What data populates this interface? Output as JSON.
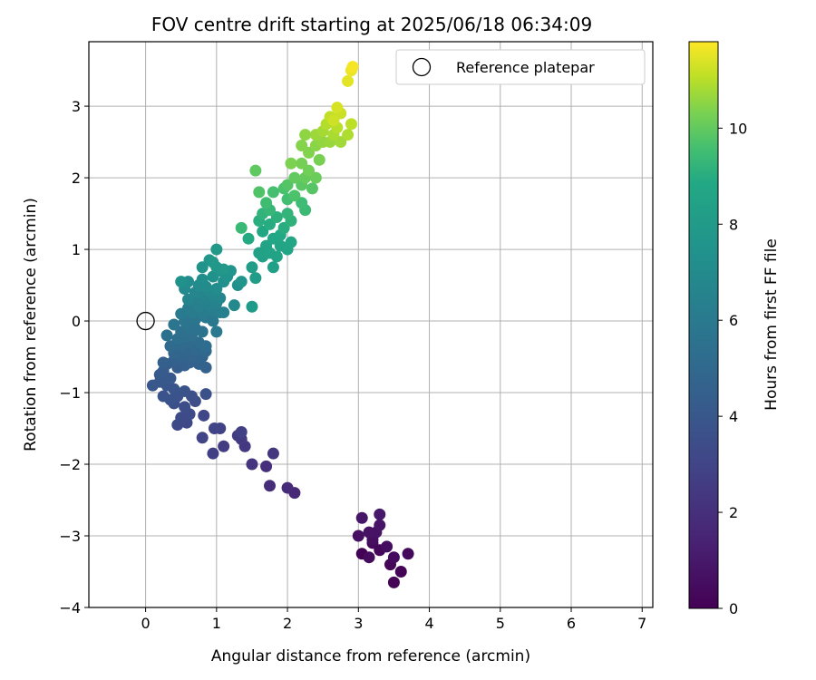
{
  "chart_data": {
    "type": "scatter",
    "title": "FOV centre drift starting at 2025/06/18 06:34:09",
    "xlabel": "Angular distance from reference (arcmin)",
    "ylabel": "Rotation from reference (arcmin)",
    "xlim": [
      -0.8,
      7.15
    ],
    "ylim": [
      -4.0,
      3.9
    ],
    "xticks": [
      "0",
      "1",
      "2",
      "3",
      "4",
      "5",
      "6",
      "7"
    ],
    "yticks": [
      "−4",
      "−3",
      "−2",
      "−1",
      "0",
      "1",
      "2",
      "3"
    ],
    "grid": true,
    "legend": {
      "position": "top-right",
      "entries": [
        "Reference platepar"
      ]
    },
    "reference_point": {
      "x": 0,
      "y": 0
    },
    "colorbar": {
      "label": "Hours from first FF file",
      "range": [
        0,
        11.8
      ],
      "ticks": [
        "0",
        "2",
        "4",
        "6",
        "8",
        "10"
      ],
      "colormap": "viridis"
    },
    "series": [
      {
        "points": [
          [
            3.05,
            -3.25,
            0.05
          ],
          [
            3.6,
            -3.5,
            0.1
          ],
          [
            3.5,
            -3.65,
            0.15
          ],
          [
            3.45,
            -3.4,
            0.2
          ],
          [
            3.3,
            -3.2,
            0.25
          ],
          [
            3.2,
            -3.1,
            0.3
          ],
          [
            3.7,
            -3.25,
            0.35
          ],
          [
            3.5,
            -3.3,
            0.4
          ],
          [
            3.15,
            -3.3,
            0.45
          ],
          [
            3.4,
            -3.15,
            0.5
          ],
          [
            3.2,
            -3.05,
            0.55
          ],
          [
            3.0,
            -3.0,
            0.6
          ],
          [
            3.25,
            -2.95,
            0.7
          ],
          [
            3.15,
            -2.95,
            0.75
          ],
          [
            3.3,
            -2.85,
            0.85
          ],
          [
            3.05,
            -2.75,
            0.9
          ],
          [
            3.3,
            -2.7,
            1.0
          ],
          [
            2.1,
            -2.4,
            1.7
          ],
          [
            2.0,
            -2.33,
            1.8
          ],
          [
            1.75,
            -2.3,
            1.9
          ],
          [
            1.7,
            -2.03,
            2.0
          ],
          [
            1.5,
            -2.0,
            2.2
          ],
          [
            1.8,
            -1.85,
            2.3
          ],
          [
            1.4,
            -1.75,
            2.4
          ],
          [
            1.35,
            -1.65,
            2.5
          ],
          [
            1.3,
            -1.6,
            2.55
          ],
          [
            1.1,
            -1.75,
            2.6
          ],
          [
            0.95,
            -1.85,
            2.7
          ],
          [
            1.35,
            -1.55,
            2.75
          ],
          [
            1.05,
            -1.5,
            2.85
          ],
          [
            0.97,
            -1.5,
            2.95
          ],
          [
            0.8,
            -1.63,
            3.0
          ],
          [
            0.82,
            -1.32,
            3.1
          ],
          [
            0.58,
            -1.42,
            3.2
          ],
          [
            0.45,
            -1.45,
            3.3
          ],
          [
            0.62,
            -1.3,
            3.35
          ],
          [
            0.5,
            -1.35,
            3.4
          ],
          [
            0.55,
            -1.2,
            3.45
          ],
          [
            0.7,
            -1.12,
            3.5
          ],
          [
            0.4,
            -1.15,
            3.55
          ],
          [
            0.65,
            -1.05,
            3.6
          ],
          [
            0.85,
            -1.02,
            3.65
          ],
          [
            0.45,
            -1.05,
            3.7
          ],
          [
            0.35,
            -1.1,
            3.75
          ],
          [
            0.55,
            -0.98,
            3.8
          ],
          [
            0.25,
            -1.05,
            3.85
          ],
          [
            0.4,
            -0.95,
            3.9
          ],
          [
            0.3,
            -0.9,
            3.95
          ],
          [
            0.1,
            -0.9,
            4.0
          ],
          [
            0.2,
            -0.85,
            4.05
          ],
          [
            0.35,
            -0.8,
            4.1
          ],
          [
            0.2,
            -0.75,
            4.15
          ],
          [
            0.25,
            -0.7,
            4.2
          ],
          [
            0.3,
            -0.6,
            4.3
          ],
          [
            0.45,
            -0.65,
            4.35
          ],
          [
            0.25,
            -0.58,
            4.4
          ],
          [
            0.55,
            -0.62,
            4.45
          ],
          [
            0.4,
            -0.55,
            4.5
          ],
          [
            0.62,
            -0.58,
            4.55
          ],
          [
            0.85,
            -0.65,
            4.6
          ],
          [
            0.75,
            -0.6,
            4.65
          ],
          [
            0.5,
            -0.5,
            4.7
          ],
          [
            0.65,
            -0.5,
            4.75
          ],
          [
            0.8,
            -0.5,
            4.8
          ],
          [
            0.4,
            -0.45,
            4.85
          ],
          [
            0.55,
            -0.42,
            4.9
          ],
          [
            0.7,
            -0.4,
            4.95
          ],
          [
            0.85,
            -0.42,
            5.0
          ],
          [
            0.35,
            -0.35,
            5.05
          ],
          [
            0.5,
            -0.33,
            5.1
          ],
          [
            0.6,
            -0.3,
            5.15
          ],
          [
            0.75,
            -0.3,
            5.2
          ],
          [
            0.85,
            -0.35,
            5.25
          ],
          [
            0.45,
            -0.25,
            5.3
          ],
          [
            0.55,
            -0.22,
            5.35
          ],
          [
            0.65,
            -0.2,
            5.4
          ],
          [
            0.3,
            -0.2,
            5.45
          ],
          [
            0.5,
            -0.15,
            5.5
          ],
          [
            0.7,
            -0.1,
            5.55
          ],
          [
            0.8,
            -0.15,
            5.6
          ],
          [
            0.6,
            -0.08,
            5.65
          ],
          [
            0.4,
            -0.05,
            5.7
          ],
          [
            0.55,
            0.0,
            5.75
          ],
          [
            0.7,
            0.02,
            5.8
          ],
          [
            0.85,
            0.05,
            5.85
          ],
          [
            0.95,
            0.0,
            5.9
          ],
          [
            1.0,
            -0.15,
            5.95
          ],
          [
            0.5,
            0.1,
            6.0
          ],
          [
            0.65,
            0.12,
            6.05
          ],
          [
            0.8,
            0.1,
            6.1
          ],
          [
            0.6,
            0.18,
            6.15
          ],
          [
            0.95,
            0.15,
            6.2
          ],
          [
            1.05,
            0.12,
            6.25
          ],
          [
            0.75,
            0.2,
            6.3
          ],
          [
            0.9,
            0.22,
            6.35
          ],
          [
            1.1,
            0.12,
            6.4
          ],
          [
            0.7,
            0.28,
            6.45
          ],
          [
            0.85,
            0.3,
            6.5
          ],
          [
            1.0,
            0.25,
            6.55
          ],
          [
            0.6,
            0.3,
            6.6
          ],
          [
            0.8,
            0.38,
            6.65
          ],
          [
            0.95,
            0.35,
            6.7
          ],
          [
            1.05,
            0.32,
            6.75
          ],
          [
            0.7,
            0.4,
            6.8
          ],
          [
            0.9,
            0.42,
            6.85
          ],
          [
            1.25,
            0.22,
            6.9
          ],
          [
            0.55,
            0.45,
            6.95
          ],
          [
            0.75,
            0.5,
            7.0
          ],
          [
            0.85,
            0.48,
            7.05
          ],
          [
            1.0,
            0.45,
            7.1
          ],
          [
            0.6,
            0.55,
            7.15
          ],
          [
            0.8,
            0.58,
            7.2
          ],
          [
            1.1,
            0.55,
            7.25
          ],
          [
            1.3,
            0.5,
            7.3
          ],
          [
            0.5,
            0.55,
            7.35
          ],
          [
            0.95,
            0.62,
            7.4
          ],
          [
            1.15,
            0.62,
            7.45
          ],
          [
            0.8,
            0.75,
            7.5
          ],
          [
            1.05,
            0.7,
            7.55
          ],
          [
            1.2,
            0.7,
            7.6
          ],
          [
            1.35,
            0.55,
            7.65
          ],
          [
            0.9,
            0.85,
            7.7
          ],
          [
            1.0,
            0.75,
            7.75
          ],
          [
            1.1,
            0.72,
            7.8
          ],
          [
            0.95,
            0.82,
            7.85
          ],
          [
            1.0,
            1.0,
            7.9
          ],
          [
            1.5,
            0.2,
            8.0
          ],
          [
            1.55,
            0.6,
            8.1
          ],
          [
            1.5,
            0.75,
            8.2
          ],
          [
            1.65,
            0.9,
            8.3
          ],
          [
            1.8,
            0.75,
            8.35
          ],
          [
            1.6,
            0.95,
            8.4
          ],
          [
            1.75,
            0.95,
            8.45
          ],
          [
            1.85,
            0.9,
            8.5
          ],
          [
            1.7,
            1.05,
            8.55
          ],
          [
            1.9,
            1.05,
            8.6
          ],
          [
            2.0,
            1.0,
            8.65
          ],
          [
            2.05,
            1.1,
            8.7
          ],
          [
            1.8,
            1.15,
            8.75
          ],
          [
            1.65,
            1.25,
            8.8
          ],
          [
            1.9,
            1.2,
            8.85
          ],
          [
            1.45,
            1.15,
            8.9
          ],
          [
            1.75,
            1.35,
            8.95
          ],
          [
            1.95,
            1.3,
            9.0
          ],
          [
            1.6,
            1.4,
            9.05
          ],
          [
            1.85,
            1.45,
            9.1
          ],
          [
            2.05,
            1.4,
            9.15
          ],
          [
            1.65,
            1.5,
            9.2
          ],
          [
            2.0,
            1.5,
            9.25
          ],
          [
            1.75,
            1.55,
            9.3
          ],
          [
            1.35,
            1.3,
            9.35
          ],
          [
            2.25,
            1.55,
            9.4
          ],
          [
            2.2,
            1.65,
            9.45
          ],
          [
            1.7,
            1.65,
            9.5
          ],
          [
            2.0,
            1.7,
            9.55
          ],
          [
            1.8,
            1.8,
            9.6
          ],
          [
            1.95,
            1.85,
            9.65
          ],
          [
            2.1,
            1.75,
            9.7
          ],
          [
            1.6,
            1.8,
            9.75
          ],
          [
            2.0,
            1.9,
            9.8
          ],
          [
            2.35,
            1.85,
            9.85
          ],
          [
            2.2,
            1.9,
            9.9
          ],
          [
            1.55,
            2.1,
            9.95
          ],
          [
            2.1,
            2.0,
            10.0
          ],
          [
            2.25,
            2.0,
            10.05
          ],
          [
            2.4,
            2.0,
            10.1
          ],
          [
            2.3,
            2.1,
            10.2
          ],
          [
            2.2,
            2.2,
            10.25
          ],
          [
            2.45,
            2.25,
            10.3
          ],
          [
            2.05,
            2.2,
            10.35
          ],
          [
            2.3,
            2.35,
            10.4
          ],
          [
            2.2,
            2.45,
            10.45
          ],
          [
            2.4,
            2.45,
            10.5
          ],
          [
            2.25,
            2.6,
            10.55
          ],
          [
            2.5,
            2.5,
            10.6
          ],
          [
            2.6,
            2.5,
            10.65
          ],
          [
            2.4,
            2.6,
            10.7
          ],
          [
            2.75,
            2.5,
            10.75
          ],
          [
            2.5,
            2.65,
            10.8
          ],
          [
            2.65,
            2.6,
            10.85
          ],
          [
            2.85,
            2.6,
            10.9
          ],
          [
            2.55,
            2.75,
            10.95
          ],
          [
            2.7,
            2.7,
            11.0
          ],
          [
            2.9,
            2.75,
            11.05
          ],
          [
            2.6,
            2.85,
            11.1
          ],
          [
            2.75,
            2.9,
            11.2
          ],
          [
            2.65,
            2.8,
            11.25
          ],
          [
            2.7,
            2.98,
            11.35
          ],
          [
            2.85,
            3.35,
            11.5
          ],
          [
            2.9,
            3.5,
            11.6
          ],
          [
            2.92,
            3.55,
            11.7
          ]
        ]
      }
    ]
  }
}
